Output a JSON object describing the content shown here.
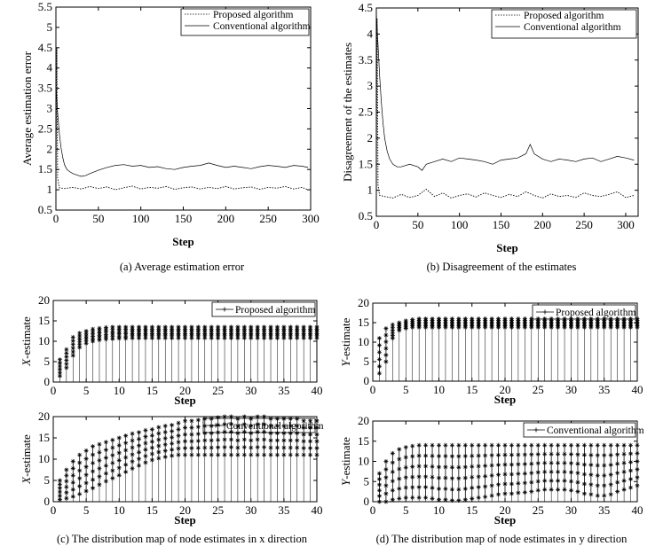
{
  "captions": {
    "a": "(a) Average estimation error",
    "b": "(b) Disagreement of the estimates",
    "c": "(c) The distribution map of node estimates in x direction",
    "d": "(d) The distribution map of node estimates in y direction"
  },
  "chart_data": [
    {
      "id": "a",
      "type": "line",
      "xlabel": "Step",
      "ylabel": "Average estimation error",
      "xlim": [
        0,
        300
      ],
      "ylim": [
        0.5,
        5.5
      ],
      "xticks": [
        0,
        50,
        100,
        150,
        200,
        250,
        300
      ],
      "yticks": [
        0.5,
        1,
        1.5,
        2,
        2.5,
        3,
        3.5,
        4,
        4.5,
        5,
        5.5
      ],
      "legend_position": "top-right",
      "series": [
        {
          "name": "Proposed algorithm",
          "style": "dotted",
          "x": [
            0,
            1,
            2,
            4,
            10,
            20,
            30,
            40,
            50,
            60,
            70,
            80,
            90,
            100,
            110,
            120,
            130,
            140,
            150,
            160,
            170,
            180,
            190,
            200,
            210,
            220,
            230,
            240,
            250,
            260,
            270,
            280,
            290,
            297
          ],
          "y": [
            1.0,
            4.5,
            1.3,
            1.05,
            1.03,
            1.06,
            1.02,
            1.08,
            1.03,
            1.07,
            1.0,
            1.05,
            1.09,
            1.02,
            1.06,
            1.04,
            1.08,
            1.01,
            1.05,
            1.07,
            1.02,
            1.06,
            1.03,
            1.08,
            1.02,
            1.05,
            1.07,
            1.01,
            1.06,
            1.04,
            1.08,
            1.02,
            1.06,
            1.0
          ]
        },
        {
          "name": "Conventional algorithm",
          "style": "solid",
          "x": [
            0,
            2,
            4,
            6,
            8,
            10,
            13,
            16,
            20,
            25,
            30,
            35,
            40,
            50,
            60,
            70,
            80,
            90,
            100,
            110,
            120,
            130,
            140,
            150,
            160,
            170,
            180,
            190,
            200,
            210,
            220,
            230,
            240,
            250,
            260,
            270,
            280,
            290,
            297
          ],
          "y": [
            3.6,
            2.9,
            2.4,
            2.05,
            1.8,
            1.62,
            1.5,
            1.45,
            1.4,
            1.36,
            1.33,
            1.35,
            1.4,
            1.48,
            1.55,
            1.6,
            1.62,
            1.58,
            1.6,
            1.55,
            1.57,
            1.52,
            1.5,
            1.55,
            1.58,
            1.6,
            1.66,
            1.6,
            1.55,
            1.58,
            1.55,
            1.52,
            1.57,
            1.6,
            1.58,
            1.55,
            1.6,
            1.58,
            1.55
          ]
        }
      ]
    },
    {
      "id": "b",
      "type": "line",
      "xlabel": "Step",
      "ylabel": "Disagreement of the estimates",
      "xlim": [
        0,
        315
      ],
      "ylim": [
        0.5,
        4.5
      ],
      "xticks": [
        0,
        50,
        100,
        150,
        200,
        250,
        300
      ],
      "yticks": [
        0.5,
        1,
        1.5,
        2,
        2.5,
        3,
        3.5,
        4,
        4.5
      ],
      "legend_position": "top-right",
      "series": [
        {
          "name": "Proposed algorithm",
          "style": "dotted",
          "x": [
            0,
            1,
            2,
            4,
            10,
            20,
            30,
            40,
            50,
            60,
            70,
            80,
            90,
            100,
            110,
            120,
            130,
            140,
            150,
            160,
            170,
            180,
            190,
            200,
            210,
            220,
            230,
            240,
            250,
            260,
            270,
            280,
            290,
            300,
            310
          ],
          "y": [
            0.95,
            4.3,
            1.1,
            0.9,
            0.88,
            0.85,
            0.92,
            0.86,
            0.9,
            1.02,
            0.88,
            0.95,
            0.85,
            0.9,
            0.93,
            0.87,
            0.95,
            0.9,
            0.86,
            0.92,
            0.88,
            0.97,
            0.9,
            0.85,
            0.93,
            0.88,
            0.9,
            0.86,
            0.95,
            0.9,
            0.88,
            0.92,
            0.97,
            0.86,
            0.9
          ]
        },
        {
          "name": "Conventional algorithm",
          "style": "solid",
          "x": [
            0,
            2,
            4,
            6,
            8,
            10,
            13,
            16,
            20,
            25,
            30,
            40,
            50,
            55,
            60,
            70,
            80,
            90,
            100,
            110,
            120,
            130,
            140,
            150,
            160,
            170,
            180,
            185,
            190,
            200,
            210,
            220,
            230,
            240,
            250,
            260,
            270,
            280,
            290,
            300,
            310
          ],
          "y": [
            4.4,
            3.8,
            3.2,
            2.7,
            2.3,
            2.0,
            1.75,
            1.6,
            1.5,
            1.45,
            1.45,
            1.5,
            1.45,
            1.38,
            1.5,
            1.55,
            1.6,
            1.55,
            1.62,
            1.6,
            1.58,
            1.55,
            1.5,
            1.58,
            1.6,
            1.62,
            1.7,
            1.88,
            1.7,
            1.6,
            1.55,
            1.6,
            1.58,
            1.55,
            1.6,
            1.62,
            1.55,
            1.6,
            1.65,
            1.62,
            1.58
          ]
        }
      ]
    },
    {
      "id": "c1",
      "type": "scatter",
      "xlabel": "Step",
      "ylabel": "X-estimate",
      "xlim": [
        0,
        40
      ],
      "ylim": [
        0,
        20
      ],
      "xticks": [
        0,
        5,
        10,
        15,
        20,
        25,
        30,
        35,
        40
      ],
      "yticks": [
        0,
        5,
        10,
        15,
        20
      ],
      "legend_position": "top-right",
      "series": [
        {
          "name": "Proposed algorithm",
          "x": "steps 1-40",
          "range_low": [
            1.5,
            3.5,
            6.5,
            8.5,
            9.5,
            10.0,
            10.3,
            10.5,
            10.6,
            10.7,
            10.7,
            10.8,
            10.8,
            10.8,
            10.8,
            10.8,
            10.8,
            10.8,
            10.8,
            10.8,
            10.8,
            10.8,
            10.8,
            10.8,
            10.8,
            10.8,
            10.8,
            10.8,
            10.8,
            10.8,
            10.8,
            10.8,
            10.8,
            10.8,
            10.8,
            10.8,
            10.8,
            10.8,
            10.8,
            10.8
          ],
          "range_high": [
            5.5,
            8.0,
            11.0,
            12.0,
            12.5,
            13.0,
            13.2,
            13.4,
            13.5,
            13.5,
            13.5,
            13.5,
            13.5,
            13.5,
            13.5,
            13.5,
            13.5,
            13.5,
            13.5,
            13.5,
            13.5,
            13.5,
            13.5,
            13.5,
            13.5,
            13.5,
            13.5,
            13.5,
            13.5,
            13.5,
            13.5,
            13.5,
            13.5,
            13.5,
            13.5,
            13.5,
            13.5,
            13.5,
            13.5,
            13.5
          ]
        }
      ]
    },
    {
      "id": "c2",
      "type": "scatter",
      "xlabel": "Step",
      "ylabel": "X-estimate",
      "xlim": [
        0,
        40
      ],
      "ylim": [
        0,
        20
      ],
      "xticks": [
        0,
        5,
        10,
        15,
        20,
        25,
        30,
        35,
        40
      ],
      "yticks": [
        0,
        5,
        10,
        15,
        20
      ],
      "legend_position": "top-right",
      "series": [
        {
          "name": "Conventional algorithm",
          "x": "steps 1-40",
          "range_low": [
            0.5,
            0.8,
            1.2,
            1.8,
            2.5,
            3.2,
            4.0,
            4.8,
            5.5,
            6.2,
            7.0,
            7.8,
            8.5,
            9.2,
            9.8,
            10.2,
            10.5,
            10.8,
            11.0,
            11.0,
            11.0,
            11.0,
            11.0,
            11.0,
            11.0,
            11.0,
            11.0,
            11.0,
            11.0,
            11.0,
            11.0,
            11.0,
            11.0,
            11.0,
            11.0,
            11.0,
            11.0,
            11.0,
            11.0,
            11.0
          ],
          "range_high": [
            5.0,
            7.5,
            9.5,
            11.0,
            12.0,
            13.0,
            13.5,
            14.0,
            14.5,
            15.0,
            15.5,
            16.0,
            16.3,
            16.8,
            17.0,
            17.5,
            17.8,
            18.0,
            18.5,
            19.0,
            19.0,
            19.2,
            19.5,
            19.5,
            19.8,
            20.0,
            20.0,
            19.5,
            20.0,
            19.5,
            20.0,
            20.0,
            19.5,
            19.5,
            19.5,
            19.5,
            19.5,
            19.0,
            19.0,
            19.0
          ]
        }
      ]
    },
    {
      "id": "d1",
      "type": "scatter",
      "xlabel": "Step",
      "ylabel": "Y-estimate",
      "xlim": [
        0,
        40
      ],
      "ylim": [
        0,
        20
      ],
      "xticks": [
        0,
        5,
        10,
        15,
        20,
        25,
        30,
        35,
        40
      ],
      "yticks": [
        0,
        5,
        10,
        15,
        20
      ],
      "legend_position": "top-right",
      "series": [
        {
          "name": "Proposed algorithm",
          "x": "steps 1-40",
          "range_low": [
            2.0,
            5.0,
            11.0,
            13.0,
            13.5,
            13.8,
            13.8,
            13.8,
            13.8,
            13.8,
            13.8,
            13.8,
            13.8,
            13.8,
            13.8,
            13.8,
            13.8,
            13.8,
            13.8,
            13.8,
            13.8,
            13.8,
            13.8,
            13.8,
            13.8,
            13.8,
            13.8,
            13.8,
            13.8,
            13.8,
            13.8,
            13.8,
            13.8,
            13.8,
            13.8,
            13.8,
            13.8,
            13.8,
            13.8,
            13.8
          ],
          "range_high": [
            11.0,
            13.5,
            14.5,
            15.0,
            15.5,
            15.8,
            16.0,
            16.0,
            16.0,
            16.0,
            16.0,
            16.0,
            16.0,
            16.0,
            16.0,
            16.0,
            16.0,
            16.0,
            16.0,
            16.0,
            16.0,
            16.0,
            16.0,
            16.0,
            16.0,
            16.0,
            16.0,
            16.0,
            16.0,
            16.0,
            16.0,
            16.0,
            16.0,
            16.0,
            16.0,
            16.0,
            16.0,
            16.0,
            16.0,
            16.0
          ]
        }
      ]
    },
    {
      "id": "d2",
      "type": "scatter",
      "xlabel": "Step",
      "ylabel": "Y-estimate",
      "xlim": [
        0,
        40
      ],
      "ylim": [
        0,
        20
      ],
      "xticks": [
        0,
        5,
        10,
        15,
        20,
        25,
        30,
        35,
        40
      ],
      "yticks": [
        0,
        5,
        10,
        15,
        20
      ],
      "legend_position": "top-right",
      "series": [
        {
          "name": "Conventional algorithm",
          "x": "steps 1-40",
          "range_low": [
            0.0,
            0.0,
            0.5,
            0.8,
            1.0,
            1.0,
            1.0,
            1.0,
            0.8,
            0.5,
            0.5,
            0.3,
            0.3,
            0.5,
            0.8,
            1.0,
            1.2,
            1.5,
            1.8,
            2.0,
            2.0,
            2.2,
            2.3,
            2.5,
            2.8,
            3.0,
            3.0,
            3.0,
            3.0,
            2.8,
            2.5,
            2.0,
            1.8,
            1.5,
            1.5,
            1.8,
            2.5,
            3.0,
            3.5,
            4.0
          ],
          "range_high": [
            7.0,
            10.0,
            12.0,
            13.0,
            13.5,
            13.8,
            14.0,
            14.0,
            14.0,
            14.0,
            14.0,
            14.0,
            14.0,
            14.0,
            14.0,
            14.0,
            14.0,
            14.0,
            14.0,
            14.0,
            14.0,
            14.0,
            14.0,
            14.0,
            14.0,
            14.0,
            14.0,
            14.0,
            14.0,
            14.0,
            14.0,
            14.0,
            14.0,
            14.0,
            14.0,
            14.0,
            14.0,
            14.0,
            14.0,
            14.0
          ]
        }
      ]
    }
  ]
}
